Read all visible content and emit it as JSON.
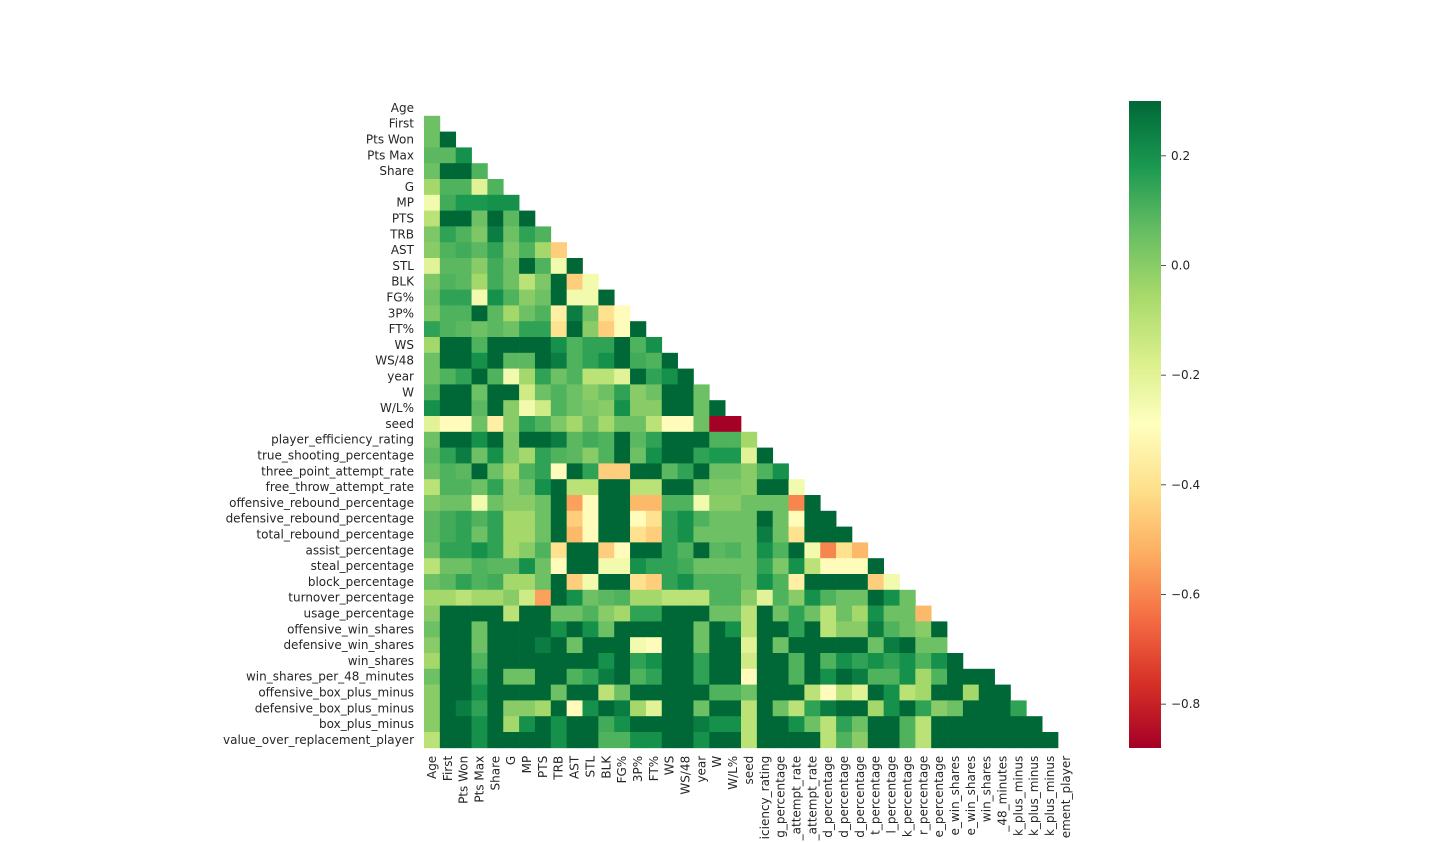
{
  "chart_data": {
    "type": "heatmap",
    "title": "",
    "xlabel": "",
    "ylabel": "",
    "mask": "upper-triangle",
    "colormap": "RdYlGn",
    "vmin": -0.88,
    "vmax": 0.3,
    "colorbar_ticks": [
      "0.2",
      "0.0",
      "−0.2",
      "−0.4",
      "−0.6",
      "−0.8"
    ],
    "colorbar_tick_values": [
      0.2,
      0.0,
      -0.2,
      -0.4,
      -0.6,
      -0.8
    ],
    "colors": {
      "cmap_stops": [
        "#a50026",
        "#d73027",
        "#f46d43",
        "#fdae61",
        "#fee08b",
        "#ffffbf",
        "#d9ef8b",
        "#a6d96a",
        "#66bd63",
        "#1a9850",
        "#006837"
      ]
    },
    "labels": [
      "Age",
      "First",
      "Pts Won",
      "Pts Max",
      "Share",
      "G",
      "MP",
      "PTS",
      "TRB",
      "AST",
      "STL",
      "BLK",
      "FG%",
      "3P%",
      "FT%",
      "WS",
      "WS/48",
      "year",
      "W",
      "W/L%",
      "seed",
      "player_efficiency_rating",
      "true_shooting_percentage",
      "three_point_attempt_rate",
      "free_throw_attempt_rate",
      "offensive_rebound_percentage",
      "defensive_rebound_percentage",
      "total_rebound_percentage",
      "assist_percentage",
      "steal_percentage",
      "block_percentage",
      "turnover_percentage",
      "usage_percentage",
      "offensive_win_shares",
      "defensive_win_shares",
      "win_shares",
      "win_shares_per_48_minutes",
      "offensive_box_plus_minus",
      "defensive_box_plus_minus",
      "box_plus_minus",
      "value_over_replacement_player"
    ],
    "x_tick_labels": [
      "Age",
      "First",
      "Pts Won",
      "Pts Max",
      "Share",
      "G",
      "MP",
      "PTS",
      "TRB",
      "AST",
      "STL",
      "BLK",
      "FG%",
      "3P%",
      "FT%",
      "WS",
      "WS/48",
      "year",
      "W",
      "W/L%",
      "seed",
      "iciency_rating",
      "g_percentage",
      "_attempt_rate",
      "_attempt_rate",
      "d_percentage",
      "d_percentage",
      "d_percentage",
      "t_percentage",
      "l_percentage",
      "k_percentage",
      "r_percentage",
      "e_percentage",
      "e_win_shares",
      "e_win_shares",
      "win_shares",
      "_48_minutes",
      "k_plus_minus",
      "k_plus_minus",
      "k_plus_minus",
      "ement_player"
    ],
    "rows": [
      [],
      [
        0.05
      ],
      [
        0.05,
        0.3
      ],
      [
        0.08,
        0.08,
        0.2
      ],
      [
        0.05,
        0.3,
        0.3,
        0.1
      ],
      [
        -0.05,
        0.1,
        0.1,
        -0.2,
        0.1
      ],
      [
        -0.25,
        0.12,
        0.18,
        0.18,
        0.2,
        0.2
      ],
      [
        -0.1,
        0.3,
        0.3,
        0.05,
        0.3,
        0.08,
        0.3
      ],
      [
        0.02,
        0.15,
        0.1,
        0.02,
        0.25,
        0.05,
        0.15,
        0.1
      ],
      [
        0.0,
        0.1,
        0.12,
        0.08,
        0.15,
        0.02,
        0.1,
        -0.05,
        -0.45
      ],
      [
        -0.2,
        0.08,
        0.08,
        0.0,
        0.12,
        0.05,
        0.3,
        0.1,
        -0.25,
        0.3
      ],
      [
        0.02,
        0.1,
        0.08,
        -0.05,
        0.12,
        0.05,
        -0.1,
        0.02,
        0.3,
        -0.45,
        -0.25
      ],
      [
        0.05,
        0.15,
        0.15,
        -0.25,
        0.2,
        0.1,
        0.0,
        0.05,
        0.3,
        -0.25,
        -0.25,
        0.3
      ],
      [
        0.02,
        0.1,
        0.1,
        0.3,
        0.08,
        -0.05,
        0.05,
        0.1,
        -0.35,
        0.25,
        0.05,
        -0.4,
        -0.3
      ],
      [
        0.15,
        0.1,
        0.08,
        0.05,
        0.08,
        0.05,
        0.15,
        0.15,
        -0.4,
        0.3,
        0.0,
        -0.45,
        -0.3,
        0.3
      ],
      [
        -0.05,
        0.3,
        0.3,
        0.1,
        0.3,
        0.3,
        0.3,
        0.3,
        0.2,
        0.1,
        0.15,
        0.15,
        0.3,
        0.1,
        0.2
      ],
      [
        0.05,
        0.3,
        0.3,
        0.2,
        0.3,
        0.08,
        0.08,
        0.3,
        0.25,
        0.1,
        0.15,
        0.2,
        0.3,
        0.12,
        0.1,
        0.3
      ],
      [
        0.05,
        0.1,
        0.15,
        0.3,
        0.1,
        -0.25,
        -0.05,
        0.15,
        0.05,
        0.1,
        -0.1,
        -0.1,
        -0.2,
        0.3,
        0.15,
        0.2,
        0.3
      ],
      [
        0.1,
        0.3,
        0.3,
        0.05,
        0.3,
        0.3,
        -0.15,
        0.05,
        0.1,
        0.05,
        0.0,
        0.05,
        0.15,
        0.0,
        0.05,
        0.3,
        0.3,
        0.05
      ],
      [
        0.2,
        0.3,
        0.3,
        0.08,
        0.3,
        0.0,
        -0.25,
        -0.15,
        0.1,
        0.05,
        0.02,
        0.0,
        0.2,
        0.0,
        0.0,
        0.3,
        0.3,
        0.05,
        0.3
      ],
      [
        -0.2,
        -0.3,
        -0.3,
        0.05,
        -0.35,
        0.0,
        0.15,
        0.1,
        0.02,
        -0.05,
        0.05,
        -0.05,
        0.05,
        0.05,
        -0.1,
        -0.3,
        -0.3,
        0.05,
        -0.88,
        -0.88
      ],
      [
        0.05,
        0.3,
        0.3,
        0.2,
        0.3,
        0.02,
        0.3,
        0.3,
        0.25,
        0.08,
        0.12,
        0.1,
        0.3,
        0.08,
        0.15,
        0.3,
        0.3,
        0.3,
        0.1,
        0.1,
        -0.05
      ],
      [
        0.08,
        0.15,
        0.25,
        0.05,
        0.2,
        0.02,
        -0.05,
        0.15,
        0.1,
        0.08,
        0.0,
        0.1,
        0.3,
        0.05,
        0.2,
        0.3,
        0.3,
        0.15,
        0.18,
        0.18,
        -0.2,
        0.3
      ],
      [
        0.05,
        0.1,
        0.08,
        0.3,
        0.05,
        -0.05,
        0.1,
        0.15,
        -0.3,
        0.3,
        0.15,
        -0.45,
        -0.45,
        0.3,
        0.3,
        0.08,
        0.15,
        0.3,
        0.05,
        0.05,
        0.0,
        0.1,
        0.2
      ],
      [
        -0.1,
        0.1,
        0.1,
        0.05,
        0.15,
        0.0,
        0.05,
        0.2,
        0.3,
        -0.1,
        -0.1,
        0.3,
        0.3,
        -0.1,
        -0.1,
        0.3,
        0.3,
        0.05,
        0.02,
        0.02,
        0.0,
        0.3,
        0.3,
        -0.25
      ],
      [
        0.02,
        0.05,
        0.05,
        -0.25,
        0.05,
        0.0,
        0.0,
        0.05,
        0.3,
        -0.55,
        -0.3,
        0.3,
        0.3,
        -0.5,
        -0.5,
        0.1,
        0.1,
        -0.25,
        0.0,
        0.0,
        0.05,
        0.05,
        0.05,
        -0.6,
        0.3
      ],
      [
        0.08,
        0.12,
        0.15,
        0.1,
        0.15,
        -0.05,
        -0.05,
        0.05,
        0.3,
        -0.45,
        -0.3,
        0.3,
        0.3,
        -0.3,
        -0.4,
        0.15,
        0.2,
        0.1,
        0.05,
        0.05,
        0.05,
        0.3,
        0.05,
        -0.3,
        0.3,
        0.3
      ],
      [
        0.08,
        0.12,
        0.15,
        0.05,
        0.15,
        -0.05,
        -0.05,
        0.05,
        0.3,
        -0.5,
        -0.3,
        0.3,
        0.3,
        -0.4,
        -0.45,
        0.15,
        0.2,
        0.05,
        0.05,
        0.05,
        0.05,
        0.25,
        0.05,
        -0.4,
        0.3,
        0.3,
        0.3
      ],
      [
        0.05,
        0.15,
        0.15,
        0.2,
        0.15,
        -0.05,
        0.0,
        0.1,
        -0.4,
        0.3,
        0.3,
        -0.45,
        -0.3,
        0.3,
        0.3,
        0.15,
        0.1,
        0.3,
        0.08,
        0.1,
        0.05,
        0.2,
        0.1,
        0.3,
        -0.25,
        -0.6,
        -0.4,
        -0.5
      ],
      [
        -0.1,
        0.05,
        0.05,
        0.1,
        0.08,
        0.08,
        0.2,
        0.05,
        -0.3,
        0.3,
        0.3,
        -0.25,
        -0.25,
        0.2,
        0.15,
        0.15,
        0.12,
        0.05,
        0.05,
        0.05,
        0.05,
        0.15,
        0.02,
        0.2,
        -0.1,
        -0.3,
        -0.3,
        -0.3,
        0.3
      ],
      [
        0.05,
        0.08,
        0.15,
        0.1,
        0.12,
        -0.05,
        -0.05,
        0.05,
        0.3,
        -0.45,
        -0.25,
        0.3,
        0.3,
        -0.4,
        -0.45,
        0.15,
        0.2,
        0.1,
        0.1,
        0.1,
        0.05,
        0.2,
        0.1,
        -0.35,
        0.3,
        0.3,
        0.3,
        0.3,
        -0.45,
        -0.25
      ],
      [
        -0.05,
        -0.05,
        -0.1,
        -0.05,
        -0.05,
        0.0,
        -0.15,
        -0.55,
        0.3,
        0.2,
        0.05,
        0.08,
        0.1,
        -0.05,
        -0.05,
        -0.1,
        -0.1,
        -0.1,
        0.1,
        0.1,
        0.0,
        -0.2,
        0.1,
        0.0,
        0.2,
        0.1,
        0.05,
        0.05,
        0.3,
        0.2,
        0.05
      ],
      [
        0.0,
        0.3,
        0.3,
        0.3,
        0.3,
        -0.1,
        0.3,
        0.3,
        0.05,
        0.05,
        0.1,
        0.0,
        -0.05,
        0.15,
        0.15,
        0.3,
        0.3,
        0.3,
        0.05,
        0.05,
        -0.1,
        0.3,
        0.05,
        0.15,
        0.05,
        -0.1,
        0.05,
        -0.05,
        0.2,
        0.05,
        0.05,
        -0.5
      ],
      [
        0.05,
        0.3,
        0.3,
        0.05,
        0.3,
        0.3,
        0.3,
        0.3,
        0.2,
        0.3,
        0.2,
        0.05,
        0.3,
        0.3,
        0.3,
        0.3,
        0.3,
        0.05,
        0.3,
        0.2,
        -0.1,
        0.3,
        0.3,
        0.15,
        0.3,
        -0.1,
        0.0,
        0.0,
        0.25,
        0.1,
        0.05,
        0.0,
        0.3
      ],
      [
        0.0,
        0.3,
        0.3,
        0.05,
        0.3,
        0.3,
        0.3,
        0.25,
        0.3,
        0.05,
        0.3,
        0.3,
        0.3,
        -0.25,
        -0.3,
        0.3,
        0.3,
        0.05,
        0.3,
        0.3,
        -0.2,
        0.3,
        0.05,
        0.3,
        0.3,
        0.3,
        0.3,
        0.3,
        0.05,
        0.25,
        0.3,
        0.05,
        0.05
      ],
      [
        -0.05,
        0.3,
        0.3,
        0.1,
        0.3,
        0.3,
        0.3,
        0.3,
        0.3,
        0.3,
        0.3,
        0.2,
        0.3,
        0.15,
        0.2,
        0.3,
        0.3,
        0.15,
        0.3,
        0.3,
        -0.15,
        0.3,
        0.3,
        0.1,
        0.3,
        0.1,
        0.2,
        0.15,
        0.2,
        0.15,
        0.2,
        0.1,
        0.2,
        0.3
      ],
      [
        0.05,
        0.3,
        0.3,
        0.15,
        0.3,
        0.05,
        0.05,
        0.3,
        0.3,
        0.1,
        0.15,
        0.25,
        0.3,
        0.1,
        0.15,
        0.3,
        0.3,
        0.15,
        0.3,
        0.3,
        -0.3,
        0.3,
        0.3,
        0.1,
        0.3,
        0.2,
        0.3,
        0.25,
        0.1,
        0.1,
        0.2,
        -0.05,
        0.1,
        0.3,
        0.3,
        0.3
      ],
      [
        0.0,
        0.3,
        0.3,
        0.2,
        0.3,
        0.3,
        0.3,
        0.3,
        0.05,
        0.3,
        0.3,
        -0.1,
        0.05,
        0.3,
        0.3,
        0.3,
        0.3,
        0.3,
        0.1,
        0.1,
        0.05,
        0.3,
        0.3,
        0.3,
        -0.1,
        -0.3,
        -0.1,
        -0.2,
        0.3,
        0.2,
        -0.1,
        -0.05,
        0.3,
        0.3,
        -0.05,
        0.3,
        0.3
      ],
      [
        0.0,
        0.3,
        0.25,
        0.15,
        0.3,
        0.0,
        0.0,
        -0.05,
        0.3,
        -0.3,
        0.2,
        0.3,
        0.25,
        -0.05,
        -0.2,
        0.3,
        0.3,
        0.05,
        0.3,
        0.3,
        -0.1,
        0.3,
        0.05,
        -0.1,
        0.15,
        0.25,
        0.3,
        0.3,
        -0.05,
        0.2,
        0.3,
        0.15,
        0.0,
        0.05,
        0.3,
        0.3,
        0.3,
        0.15
      ],
      [
        0.0,
        0.3,
        0.3,
        0.2,
        0.3,
        -0.05,
        0.2,
        0.3,
        0.2,
        0.3,
        0.3,
        0.12,
        0.2,
        0.3,
        0.3,
        0.3,
        0.3,
        0.25,
        0.2,
        0.2,
        -0.1,
        0.3,
        0.3,
        0.2,
        0.05,
        -0.1,
        0.15,
        0.05,
        0.3,
        0.3,
        0.1,
        -0.1,
        0.3,
        0.3,
        0.3,
        0.3,
        0.3,
        0.3,
        0.3
      ],
      [
        -0.1,
        0.3,
        0.3,
        0.2,
        0.3,
        0.3,
        0.3,
        0.3,
        0.2,
        0.3,
        0.3,
        0.1,
        0.1,
        0.2,
        0.2,
        0.3,
        0.3,
        0.2,
        0.3,
        0.3,
        -0.1,
        0.3,
        0.3,
        0.3,
        0.3,
        -0.1,
        0.1,
        0.0,
        0.3,
        0.3,
        0.1,
        -0.1,
        0.3,
        0.3,
        0.3,
        0.3,
        0.3,
        0.3,
        0.3,
        0.3
      ]
    ]
  }
}
